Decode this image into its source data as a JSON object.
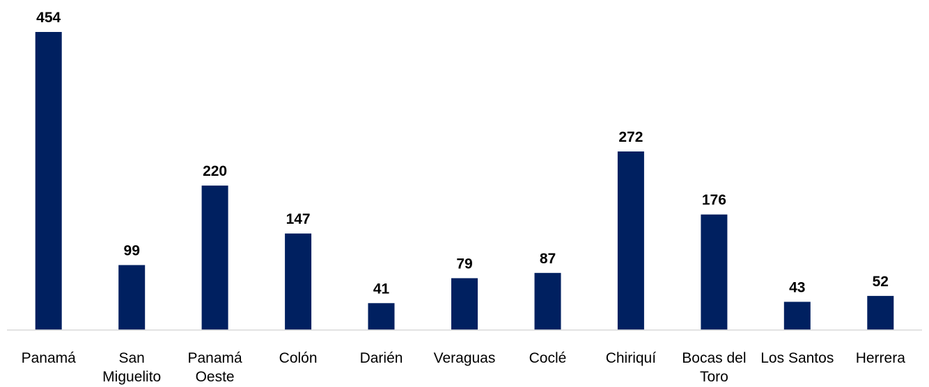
{
  "chart_data": {
    "type": "bar",
    "categories": [
      [
        "Panamá"
      ],
      [
        "San",
        "Miguelito"
      ],
      [
        "Panamá",
        "Oeste"
      ],
      [
        "Colón"
      ],
      [
        "Darién"
      ],
      [
        "Veraguas"
      ],
      [
        "Coclé"
      ],
      [
        "Chiriquí"
      ],
      [
        "Bocas del",
        "Toro"
      ],
      [
        "Los Santos"
      ],
      [
        "Herrera"
      ]
    ],
    "values": [
      454,
      99,
      220,
      147,
      41,
      79,
      87,
      272,
      176,
      43,
      52
    ],
    "ylim": [
      0,
      454
    ],
    "grid": false,
    "legend": "none",
    "bar_color": "#002060",
    "xlabel": "",
    "ylabel": ""
  }
}
